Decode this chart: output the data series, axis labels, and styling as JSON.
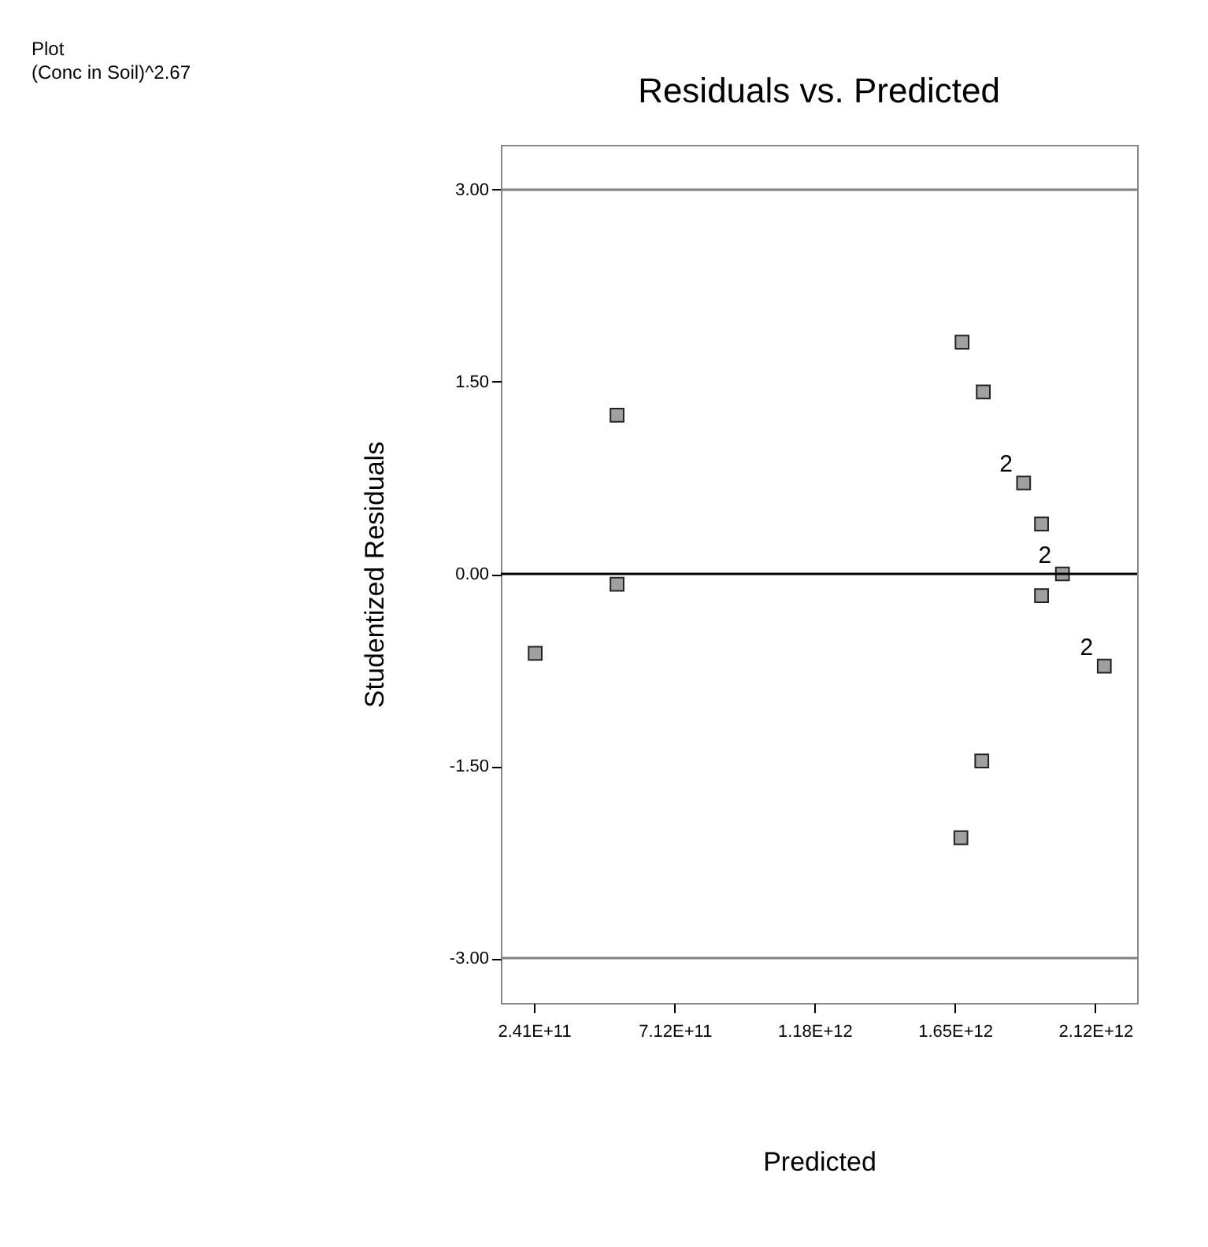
{
  "chart_data": {
    "type": "scatter",
    "title": "Residuals vs. Predicted",
    "xlabel": "Predicted",
    "ylabel": "Studentized Residuals",
    "annotations": [
      "Plot",
      "(Conc in Soil)^2.67",
      {
        "text": "2",
        "x": 1880000000000,
        "y": 0.71
      },
      {
        "text": "2",
        "x": 2010000000000,
        "y": 0.0
      },
      {
        "text": "2",
        "x": 2150000000000,
        "y": -0.72
      }
    ],
    "x": [
      245000000000,
      519000000000,
      519000000000,
      1674000000000,
      1745000000000,
      1880000000000,
      1940000000000,
      2010000000000,
      1940000000000,
      2150000000000,
      1740000000000,
      1670000000000
    ],
    "series": [
      {
        "color": "#a0a0a0",
        "values": [
          -0.62,
          1.24,
          -0.08,
          1.81,
          1.42,
          0.71,
          0.39,
          0.0,
          -0.17,
          -0.72,
          -1.46,
          -2.06
        ]
      }
    ],
    "xlim": [
      130000000000,
      2260000000000
    ],
    "ylim": [
      -3.35,
      3.35
    ],
    "xticks": [
      {
        "value": 241000000000,
        "label": "2.41E+11"
      },
      {
        "value": 712000000000,
        "label": "7.12E+11"
      },
      {
        "value": 1180000000000,
        "label": "1.18E+12"
      },
      {
        "value": 1650000000000,
        "label": "1.65E+12"
      },
      {
        "value": 2120000000000,
        "label": "2.12E+12"
      }
    ],
    "yticks": [
      {
        "value": -3,
        "label": "-3.00"
      },
      {
        "value": -1.5,
        "label": "-1.50"
      },
      {
        "value": 0,
        "label": "0.00"
      },
      {
        "value": 1.5,
        "label": "1.50"
      },
      {
        "value": 3,
        "label": "3.00"
      }
    ],
    "ref_lines": [
      {
        "axis": "y",
        "value": 3,
        "color": "#808080"
      },
      {
        "axis": "y",
        "value": 0,
        "color": "#000000"
      },
      {
        "axis": "y",
        "value": -3,
        "color": "#808080"
      }
    ],
    "grid": false,
    "marker": "square"
  }
}
